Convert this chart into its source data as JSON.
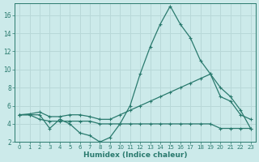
{
  "xlabel": "Humidex (Indice chaleur)",
  "x": [
    0,
    1,
    2,
    3,
    4,
    5,
    6,
    7,
    8,
    9,
    10,
    11,
    12,
    13,
    14,
    15,
    16,
    17,
    18,
    19,
    20,
    21,
    22,
    23
  ],
  "line1": [
    5,
    5,
    5,
    3.5,
    4.5,
    4,
    3,
    2.7,
    2.0,
    2.5,
    4,
    6,
    9.5,
    12.5,
    15,
    17,
    15,
    13.5,
    11,
    9.5,
    7,
    6.5,
    5,
    4.5
  ],
  "line2": [
    5,
    5.1,
    5.3,
    4.8,
    4.8,
    5.0,
    5.0,
    4.8,
    4.5,
    4.5,
    5.0,
    5.5,
    6.0,
    6.5,
    7.0,
    7.5,
    8.0,
    8.5,
    9.0,
    9.5,
    8.0,
    7.0,
    5.5,
    3.5
  ],
  "line3": [
    5,
    5,
    4.5,
    4.3,
    4.3,
    4.3,
    4.3,
    4.3,
    4.0,
    4.0,
    4.0,
    4.0,
    4.0,
    4.0,
    4.0,
    4.0,
    4.0,
    4.0,
    4.0,
    4.0,
    3.5,
    3.5,
    3.5,
    3.5
  ],
  "color": "#2a7a6e",
  "bg_color": "#cceaea",
  "grid_color": "#b8d8d8",
  "ylim": [
    2,
    17
  ],
  "yticks": [
    2,
    4,
    6,
    8,
    10,
    12,
    14,
    16
  ],
  "xlim": [
    -0.5,
    23.5
  ]
}
